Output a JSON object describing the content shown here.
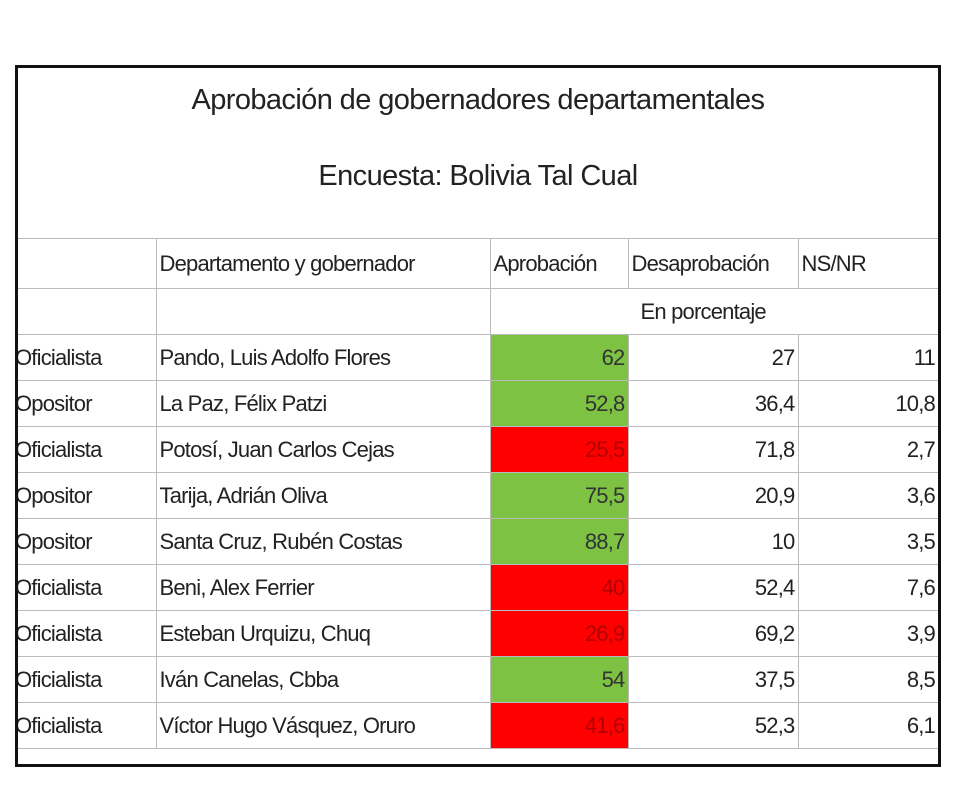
{
  "table": {
    "title": "Aprobación de gobernadores departamentales",
    "subtitle": "Encuesta: Bolivia Tal Cual",
    "header": [
      "Departamento y gobernador",
      "Aprobación",
      "Desaprobación",
      "NS/NR"
    ],
    "unit_note": "En porcentaje",
    "rows": [
      {
        "affiliation": "Oficialista",
        "name": "Pando, Luis Adolfo Flores",
        "approval": "62",
        "disapproval": "27",
        "nsnr": "11",
        "approval_fill": "#7dc242"
      },
      {
        "affiliation": "Opositor",
        "name": "La Paz, Félix Patzi",
        "approval": "52,8",
        "disapproval": "36,4",
        "nsnr": "10,8",
        "approval_fill": "#7dc242"
      },
      {
        "affiliation": "Oficialista",
        "name": "Potosí, Juan Carlos Cejas",
        "approval": "25,5",
        "disapproval": "71,8",
        "nsnr": "2,7",
        "approval_fill": "#ff0000"
      },
      {
        "affiliation": "Opositor",
        "name": "Tarija, Adrián Oliva",
        "approval": "75,5",
        "disapproval": "20,9",
        "nsnr": "3,6",
        "approval_fill": "#7dc242"
      },
      {
        "affiliation": "Opositor",
        "name": "Santa Cruz, Rubén Costas",
        "approval": "88,7",
        "disapproval": "10",
        "nsnr": "3,5",
        "approval_fill": "#7dc242"
      },
      {
        "affiliation": "Oficialista",
        "name": "Beni, Alex Ferrier",
        "approval": "40",
        "disapproval": "52,4",
        "nsnr": "7,6",
        "approval_fill": "#ff0000"
      },
      {
        "affiliation": "Oficialista",
        "name": "Esteban Urquizu, Chuq",
        "approval": "26,9",
        "disapproval": "69,2",
        "nsnr": "3,9",
        "approval_fill": "#ff0000"
      },
      {
        "affiliation": "Oficialista",
        "name": "Iván Canelas, Cbba",
        "approval": "54",
        "disapproval": "37,5",
        "nsnr": "8,5",
        "approval_fill": "#7dc242"
      },
      {
        "affiliation": "Oficialista",
        "name": "Víctor Hugo Vásquez, Oruro",
        "approval": "41,6",
        "disapproval": "52,3",
        "nsnr": "6,1",
        "approval_fill": "#ff0000"
      }
    ]
  }
}
